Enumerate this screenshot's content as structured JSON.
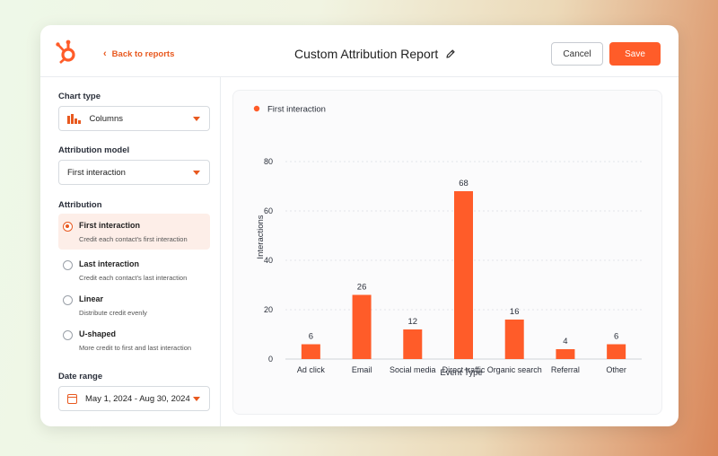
{
  "header": {
    "back_label": "Back to reports",
    "title": "Custom Attribution Report",
    "cancel_label": "Cancel",
    "save_label": "Save"
  },
  "sidebar": {
    "chart_type_label": "Chart type",
    "chart_type_value": "Columns",
    "model_label": "Attribution model",
    "model_value": "First interaction",
    "attribution_label": "Attribution",
    "options": [
      {
        "title": "First interaction",
        "desc": "Credit each contact's first interaction",
        "selected": true
      },
      {
        "title": "Last interaction",
        "desc": "Credit each contact's last interaction",
        "selected": false
      },
      {
        "title": "Linear",
        "desc": "Distribute credit evenly",
        "selected": false
      },
      {
        "title": "U-shaped",
        "desc": "More credit to first and last interaction",
        "selected": false
      }
    ],
    "date_range_label": "Date range",
    "date_range_value": "May 1, 2024 - Aug 30, 2024"
  },
  "colors": {
    "accent": "#ff5c29",
    "bar": "#ff5c29"
  },
  "chart_data": {
    "type": "bar",
    "legend": "First interaction",
    "legend_position": "top-left",
    "categories": [
      "Ad click",
      "Email",
      "Social media",
      "Direct traffic",
      "Organic search",
      "Referral",
      "Other"
    ],
    "series": [
      {
        "name": "First interaction",
        "values": [
          6,
          26,
          12,
          68,
          16,
          4,
          6
        ]
      }
    ],
    "xlabel": "Event Type",
    "ylabel": "Interactions",
    "yticks": [
      0,
      20,
      40,
      60,
      80
    ],
    "ylim": [
      0,
      80
    ],
    "grid": true
  }
}
